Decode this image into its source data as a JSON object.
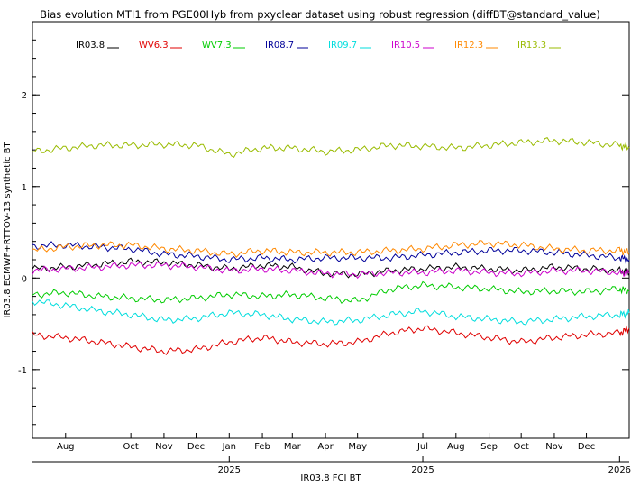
{
  "chart_data": {
    "type": "line",
    "title": "Bias evolution MTI1 from PGE00Hyb from pxyclear dataset using robust regression (diffBT@standard_value)",
    "xlabel": "IR03.8 FCI BT",
    "ylabel": "IR03.8 ECMWF+RTTOV-13 synthetic BT",
    "xlim": [
      "2024-07-01",
      "2026-01-10"
    ],
    "ylim": [
      -1.75,
      2.8
    ],
    "yticks": [
      -1,
      0,
      1,
      2
    ],
    "ytick_labels": [
      "-1",
      "0",
      "1",
      "2"
    ],
    "month_ticks": [
      {
        "date": "2024-08-01",
        "label": "Aug"
      },
      {
        "date": "2024-10-01",
        "label": "Oct"
      },
      {
        "date": "2024-11-01",
        "label": "Nov"
      },
      {
        "date": "2024-12-01",
        "label": "Dec"
      },
      {
        "date": "2025-01-01",
        "label": "Jan"
      },
      {
        "date": "2025-02-01",
        "label": "Feb"
      },
      {
        "date": "2025-03-01",
        "label": "Mar"
      },
      {
        "date": "2025-04-01",
        "label": "Apr"
      },
      {
        "date": "2025-05-01",
        "label": "May"
      },
      {
        "date": "2025-07-01",
        "label": "Jul"
      },
      {
        "date": "2025-08-01",
        "label": "Aug"
      },
      {
        "date": "2025-09-01",
        "label": "Sep"
      },
      {
        "date": "2025-10-01",
        "label": "Oct"
      },
      {
        "date": "2025-11-01",
        "label": "Nov"
      },
      {
        "date": "2025-12-01",
        "label": "Dec"
      }
    ],
    "year_ticks": [
      {
        "date": "2025-01-01",
        "label": "2025"
      },
      {
        "date": "2025-07-01",
        "label": "2025"
      },
      {
        "date": "2026-01-01",
        "label": "2026"
      }
    ],
    "grid": false,
    "legend_position": "top-left",
    "x": [
      "2024-07-01",
      "2024-08-01",
      "2024-09-01",
      "2024-10-01",
      "2024-11-01",
      "2024-12-01",
      "2025-01-01",
      "2025-02-01",
      "2025-03-01",
      "2025-04-01",
      "2025-05-01",
      "2025-06-01",
      "2025-07-01",
      "2025-08-01",
      "2025-09-01",
      "2025-10-01",
      "2025-11-01",
      "2025-12-01",
      "2026-01-01",
      "2026-01-10"
    ],
    "series": [
      {
        "name": "IR03.8",
        "color": "#000000",
        "values": [
          0.1,
          0.12,
          0.15,
          0.18,
          0.17,
          0.14,
          0.1,
          0.14,
          0.12,
          0.05,
          0.04,
          0.08,
          0.1,
          0.12,
          0.1,
          0.08,
          0.12,
          0.1,
          0.08,
          0.06
        ]
      },
      {
        "name": "WV6.3",
        "color": "#e00000",
        "values": [
          -0.62,
          -0.65,
          -0.7,
          -0.75,
          -0.8,
          -0.78,
          -0.7,
          -0.65,
          -0.7,
          -0.72,
          -0.7,
          -0.6,
          -0.55,
          -0.6,
          -0.65,
          -0.7,
          -0.65,
          -0.62,
          -0.6,
          -0.55
        ]
      },
      {
        "name": "WV7.3",
        "color": "#00cc00",
        "values": [
          -0.18,
          -0.16,
          -0.2,
          -0.22,
          -0.24,
          -0.22,
          -0.18,
          -0.2,
          -0.18,
          -0.22,
          -0.25,
          -0.12,
          -0.08,
          -0.1,
          -0.12,
          -0.15,
          -0.14,
          -0.15,
          -0.12,
          -0.14
        ]
      },
      {
        "name": "IR08.7",
        "color": "#000099",
        "values": [
          0.35,
          0.36,
          0.34,
          0.32,
          0.26,
          0.24,
          0.2,
          0.22,
          0.2,
          0.22,
          0.22,
          0.22,
          0.25,
          0.28,
          0.3,
          0.3,
          0.28,
          0.25,
          0.22,
          0.2
        ]
      },
      {
        "name": "IR09.7",
        "color": "#00dddd",
        "values": [
          -0.25,
          -0.3,
          -0.36,
          -0.4,
          -0.46,
          -0.44,
          -0.38,
          -0.4,
          -0.45,
          -0.48,
          -0.46,
          -0.4,
          -0.36,
          -0.42,
          -0.45,
          -0.48,
          -0.45,
          -0.42,
          -0.4,
          -0.38
        ]
      },
      {
        "name": "IR10.5",
        "color": "#cc00cc",
        "values": [
          0.08,
          0.1,
          0.12,
          0.14,
          0.14,
          0.12,
          0.08,
          0.1,
          0.08,
          0.05,
          0.04,
          0.06,
          0.06,
          0.08,
          0.06,
          0.05,
          0.08,
          0.08,
          0.06,
          0.05
        ]
      },
      {
        "name": "IR12.3",
        "color": "#ff8800",
        "values": [
          0.3,
          0.34,
          0.36,
          0.36,
          0.32,
          0.3,
          0.26,
          0.3,
          0.28,
          0.28,
          0.28,
          0.3,
          0.32,
          0.36,
          0.38,
          0.36,
          0.32,
          0.3,
          0.3,
          0.28
        ]
      },
      {
        "name": "IR13.3",
        "color": "#99bb00",
        "values": [
          1.38,
          1.42,
          1.45,
          1.45,
          1.46,
          1.45,
          1.35,
          1.42,
          1.42,
          1.38,
          1.4,
          1.45,
          1.44,
          1.42,
          1.45,
          1.48,
          1.5,
          1.48,
          1.45,
          1.42
        ]
      }
    ]
  }
}
